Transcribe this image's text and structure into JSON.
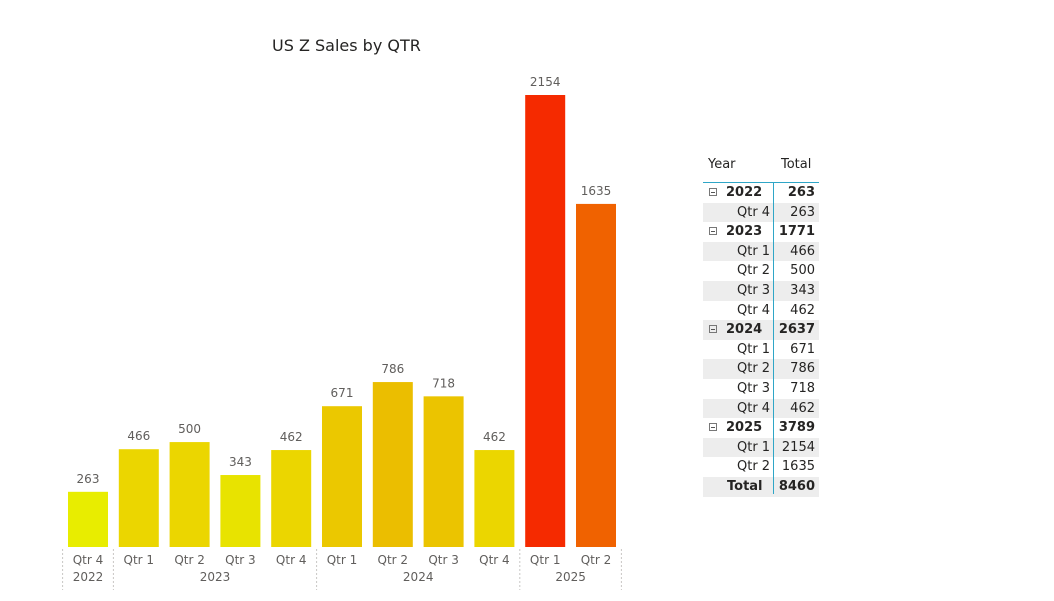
{
  "chart_data": {
    "type": "bar",
    "title": "US Z Sales by QTR",
    "categories": [
      "Qtr 4",
      "Qtr 1",
      "Qtr 2",
      "Qtr 3",
      "Qtr 4",
      "Qtr 1",
      "Qtr 2",
      "Qtr 3",
      "Qtr 4",
      "Qtr 1",
      "Qtr 2"
    ],
    "groups": [
      {
        "label": "2022",
        "count": 1
      },
      {
        "label": "2023",
        "count": 4
      },
      {
        "label": "2024",
        "count": 4
      },
      {
        "label": "2025",
        "count": 2
      }
    ],
    "values": [
      263,
      466,
      500,
      343,
      462,
      671,
      786,
      718,
      462,
      2154,
      1635
    ],
    "colors": [
      "#e8ed00",
      "#ebd600",
      "#ebd600",
      "#e8e300",
      "#ebd600",
      "#ebc800",
      "#ebbe00",
      "#ebc400",
      "#ebd600",
      "#f52a00",
      "#f06200"
    ],
    "data_labels": true,
    "gridlines": false,
    "ylim": [
      0,
      2154
    ]
  },
  "matrix": {
    "headers": {
      "year": "Year",
      "total": "Total"
    },
    "rows": [
      {
        "type": "year",
        "label": "2022",
        "value": "263"
      },
      {
        "type": "qtr",
        "label": "Qtr 4",
        "value": "263"
      },
      {
        "type": "year",
        "label": "2023",
        "value": "1771"
      },
      {
        "type": "qtr",
        "label": "Qtr 1",
        "value": "466"
      },
      {
        "type": "qtr",
        "label": "Qtr 2",
        "value": "500"
      },
      {
        "type": "qtr",
        "label": "Qtr 3",
        "value": "343"
      },
      {
        "type": "qtr",
        "label": "Qtr 4",
        "value": "462"
      },
      {
        "type": "year",
        "label": "2024",
        "value": "2637"
      },
      {
        "type": "qtr",
        "label": "Qtr 1",
        "value": "671"
      },
      {
        "type": "qtr",
        "label": "Qtr 2",
        "value": "786"
      },
      {
        "type": "qtr",
        "label": "Qtr 3",
        "value": "718"
      },
      {
        "type": "qtr",
        "label": "Qtr 4",
        "value": "462"
      },
      {
        "type": "year",
        "label": "2025",
        "value": "3789"
      },
      {
        "type": "qtr",
        "label": "Qtr 1",
        "value": "2154"
      },
      {
        "type": "qtr",
        "label": "Qtr 2",
        "value": "1635"
      },
      {
        "type": "total",
        "label": "Total",
        "value": "8460"
      }
    ]
  }
}
